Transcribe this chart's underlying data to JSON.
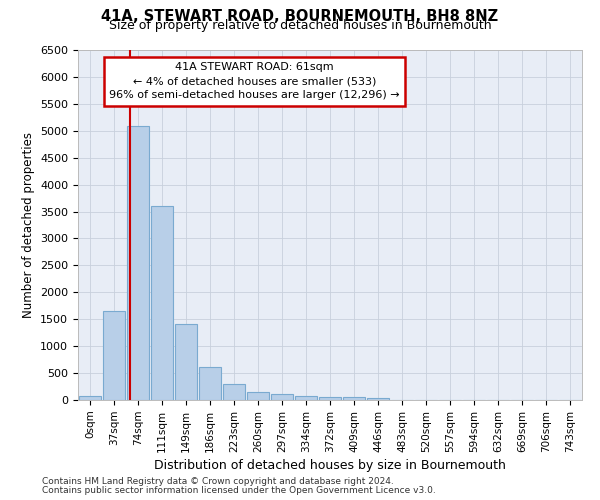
{
  "title": "41A, STEWART ROAD, BOURNEMOUTH, BH8 8NZ",
  "subtitle": "Size of property relative to detached houses in Bournemouth",
  "xlabel": "Distribution of detached houses by size in Bournemouth",
  "ylabel": "Number of detached properties",
  "footer1": "Contains HM Land Registry data © Crown copyright and database right 2024.",
  "footer2": "Contains public sector information licensed under the Open Government Licence v3.0.",
  "bar_labels": [
    "0sqm",
    "37sqm",
    "74sqm",
    "111sqm",
    "149sqm",
    "186sqm",
    "223sqm",
    "260sqm",
    "297sqm",
    "334sqm",
    "372sqm",
    "409sqm",
    "446sqm",
    "483sqm",
    "520sqm",
    "557sqm",
    "594sqm",
    "632sqm",
    "669sqm",
    "706sqm",
    "743sqm"
  ],
  "bar_values": [
    75,
    1650,
    5080,
    3600,
    1410,
    620,
    295,
    155,
    110,
    75,
    60,
    50,
    40,
    0,
    0,
    0,
    0,
    0,
    0,
    0,
    0
  ],
  "bar_color": "#b8cfe8",
  "bar_edge_color": "#7aaad0",
  "ylim": [
    0,
    6500
  ],
  "yticks": [
    0,
    500,
    1000,
    1500,
    2000,
    2500,
    3000,
    3500,
    4000,
    4500,
    5000,
    5500,
    6000,
    6500
  ],
  "vline_x": 1.65,
  "annotation_title": "41A STEWART ROAD: 61sqm",
  "annotation_line1": "← 4% of detached houses are smaller (533)",
  "annotation_line2": "96% of semi-detached houses are larger (12,296) →",
  "annotation_box_color": "#ffffff",
  "annotation_box_edge": "#cc0000",
  "vline_color": "#cc0000",
  "grid_color": "#c8d0dc",
  "background_color": "#e8edf6"
}
